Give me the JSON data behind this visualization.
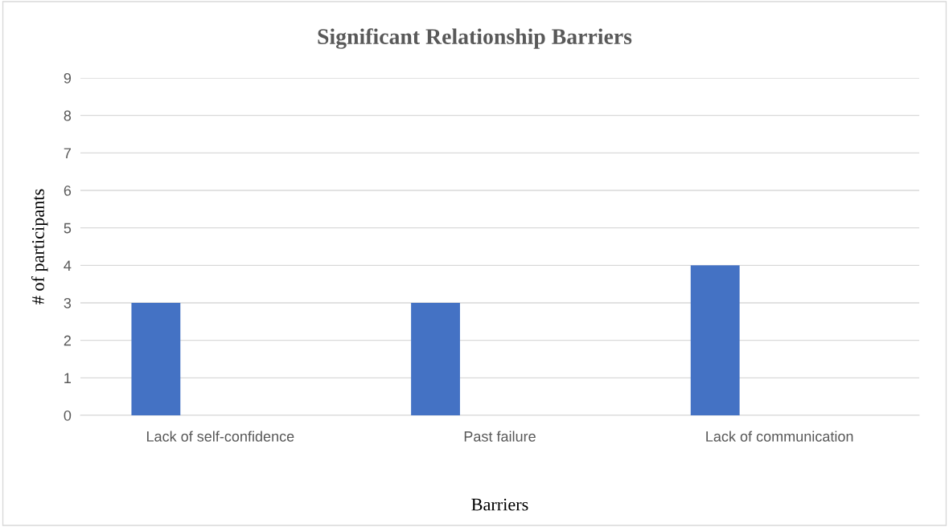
{
  "chart_data": {
    "type": "bar",
    "title": "Significant Relationship Barriers",
    "xlabel": "Barriers",
    "ylabel": "# of participants",
    "categories": [
      "Lack of self-confidence",
      "Past failure",
      "Lack of communication"
    ],
    "values": [
      3,
      3,
      4
    ],
    "color": "#4472c4",
    "ylim": [
      0,
      9
    ],
    "yticks": [
      0,
      1,
      2,
      3,
      4,
      5,
      6,
      7,
      8,
      9
    ],
    "grid": "y",
    "legend": false
  }
}
